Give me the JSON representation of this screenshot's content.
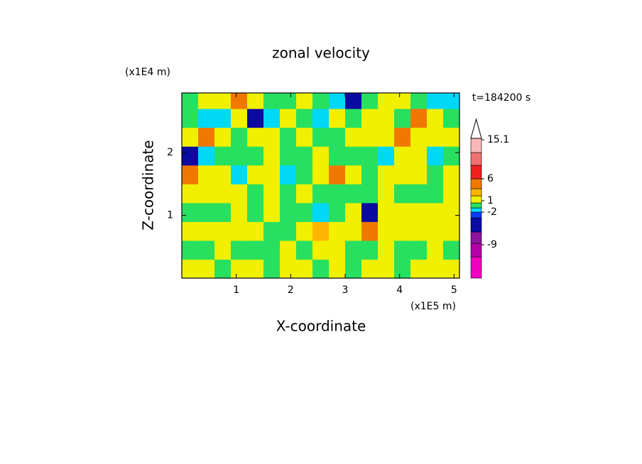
{
  "chart_data": {
    "type": "contour",
    "title": "zonal velocity",
    "xlabel": "X-coordinate",
    "ylabel": "Z-coordinate",
    "x_unit": "(x1E5 m)",
    "y_unit": "(x1E4 m)",
    "annotation": "t=184200 s",
    "xlim": [
      0,
      5.1
    ],
    "ylim": [
      0,
      2.95
    ],
    "xticks": [
      1,
      2,
      3,
      4,
      5
    ],
    "yticks": [
      1,
      2
    ],
    "x": [
      0.15,
      0.45,
      0.75,
      1.05,
      1.35,
      1.65,
      1.95,
      2.25,
      2.55,
      2.85,
      3.15,
      3.45,
      3.75,
      4.05,
      4.35,
      4.65,
      4.95
    ],
    "y": [
      0.15,
      0.45,
      0.75,
      1.05,
      1.35,
      1.65,
      1.95,
      2.25,
      2.55,
      2.85
    ],
    "z": [
      [
        2,
        2,
        0,
        2,
        2,
        0,
        2,
        2,
        0,
        2,
        0,
        2,
        2,
        0,
        2,
        2,
        2
      ],
      [
        0,
        0,
        2,
        0,
        0,
        0,
        2,
        0,
        2,
        2,
        0,
        0,
        2,
        0,
        0,
        2,
        0
      ],
      [
        2,
        2,
        2,
        2,
        2,
        0,
        0,
        2,
        3,
        2,
        2,
        4,
        2,
        2,
        2,
        2,
        2
      ],
      [
        0,
        0,
        0,
        2,
        0,
        2,
        0,
        0,
        -1,
        0,
        2,
        -4,
        2,
        2,
        2,
        2,
        2
      ],
      [
        2,
        2,
        2,
        2,
        0,
        2,
        0,
        2,
        0,
        0,
        0,
        0,
        2,
        0,
        0,
        0,
        2
      ],
      [
        4,
        2,
        2,
        -1,
        2,
        2,
        -1,
        0,
        2,
        4,
        2,
        0,
        2,
        2,
        2,
        0,
        2
      ],
      [
        -4,
        -1,
        0,
        0,
        0,
        2,
        0,
        0,
        2,
        0,
        0,
        0,
        -1,
        2,
        2,
        -1,
        0
      ],
      [
        2,
        4,
        2,
        0,
        2,
        2,
        0,
        2,
        0,
        0,
        2,
        2,
        2,
        4,
        2,
        2,
        2
      ],
      [
        0,
        -1,
        -1,
        2,
        -4,
        -1,
        2,
        0,
        -1,
        2,
        0,
        2,
        2,
        0,
        4,
        2,
        0
      ],
      [
        0,
        2,
        2,
        4,
        2,
        0,
        0,
        2,
        0,
        -1,
        -4,
        0,
        2,
        2,
        0,
        -1,
        -1
      ]
    ],
    "colorbar": {
      "ticks": [
        -9,
        -2,
        1,
        6,
        15.1
      ],
      "colors": [
        "#f000c0",
        "#b400a8",
        "#8c14a0",
        "#0a0aa0",
        "#0a3cff",
        "#00d8f8",
        "#28e060",
        "#f0f000",
        "#ffb400",
        "#f07800",
        "#f02020",
        "#f07070",
        "#f8b8b8"
      ]
    }
  }
}
